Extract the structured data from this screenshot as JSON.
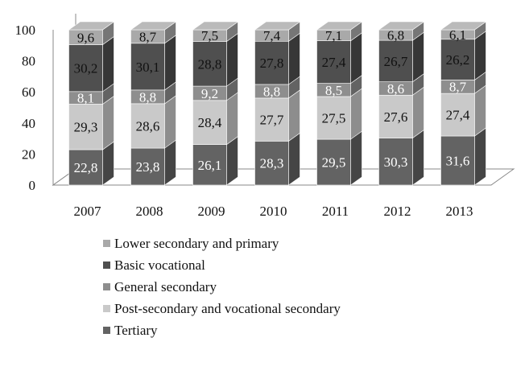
{
  "chart_data": {
    "type": "bar",
    "stacked": true,
    "categories": [
      "2007",
      "2008",
      "2009",
      "2010",
      "2011",
      "2012",
      "2013"
    ],
    "series": [
      {
        "name": "Tertiary",
        "values": [
          22.8,
          23.8,
          26.1,
          28.3,
          29.5,
          30.3,
          31.6
        ],
        "labels": [
          "22,8",
          "23,8",
          "26,1",
          "28,3",
          "29,5",
          "30,3",
          "31,6"
        ],
        "color": "#636363",
        "text_color": "#ffffff"
      },
      {
        "name": "Post-secondary and vocational secondary",
        "values": [
          29.3,
          28.6,
          28.4,
          27.7,
          27.5,
          27.6,
          27.4
        ],
        "labels": [
          "29,3",
          "28,6",
          "28,4",
          "27,7",
          "27,5",
          "27,6",
          "27,4"
        ],
        "color": "#c9c9c9",
        "text_color": "#111111"
      },
      {
        "name": "General secondary",
        "values": [
          8.1,
          8.8,
          9.2,
          8.8,
          8.5,
          8.6,
          8.7
        ],
        "labels": [
          "8,1",
          "8,8",
          "9,2",
          "8,8",
          "8,5",
          "8,6",
          "8,7"
        ],
        "color": "#8e8e8e",
        "text_color": "#ffffff"
      },
      {
        "name": "Basic vocational",
        "values": [
          30.2,
          30.1,
          28.8,
          27.8,
          27.4,
          26.7,
          26.2
        ],
        "labels": [
          "30,2",
          "30,1",
          "28,8",
          "27,8",
          "27,4",
          "26,7",
          "26,2"
        ],
        "color": "#4f4f4f",
        "text_color": "#111111"
      },
      {
        "name": "Lower secondary and primary",
        "values": [
          9.6,
          8.7,
          7.5,
          7.4,
          7.1,
          6.8,
          6.1
        ],
        "labels": [
          "9,6",
          "8,7",
          "7,5",
          "7,4",
          "7,1",
          "6,8",
          "6,1"
        ],
        "color": "#a9a9a9",
        "text_color": "#111111"
      }
    ],
    "yticks": [
      "0",
      "20",
      "40",
      "60",
      "80",
      "100"
    ],
    "ylim": [
      0,
      100
    ],
    "title": "",
    "xlabel": "",
    "ylabel": "",
    "legend_position": "bottom",
    "grid": false
  }
}
